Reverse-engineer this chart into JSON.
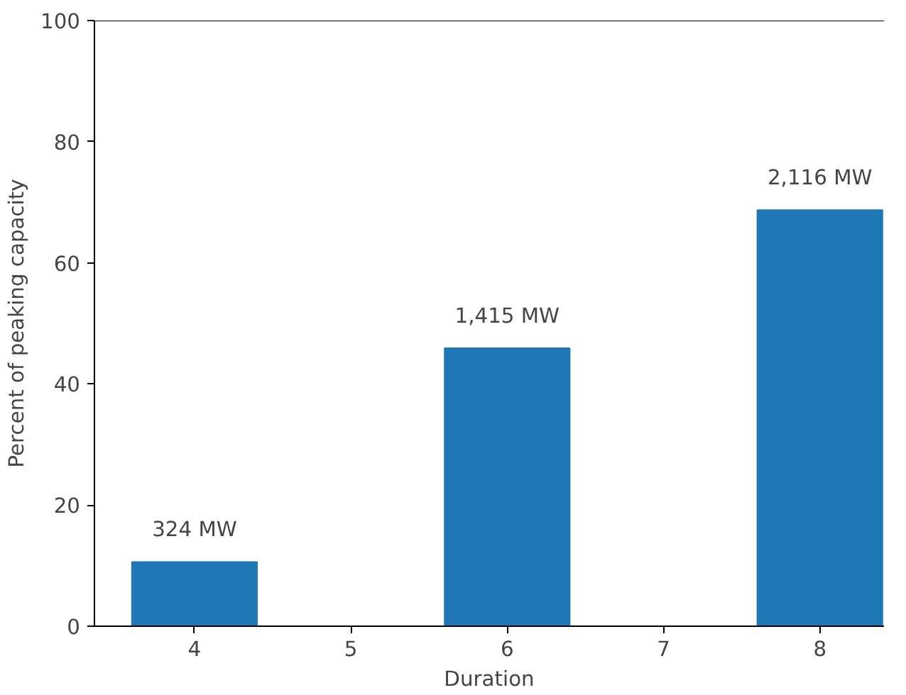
{
  "chart_data": {
    "type": "bar",
    "xlabel": "Duration",
    "ylabel": "Percent of peaking capacity",
    "x": [
      4,
      6,
      8
    ],
    "values": [
      10.6,
      45.9,
      68.7
    ],
    "color": "#1f77b4",
    "annotations": [
      {
        "text": "324 MW",
        "x": 4,
        "y": 10.6
      },
      {
        "text": "1,415 MW",
        "x": 6,
        "y": 45.9
      },
      {
        "text": "2,116 MW",
        "x": 8,
        "y": 68.7
      }
    ],
    "xlim": [
      3.36,
      8.41
    ],
    "xticks": [
      4,
      5,
      6,
      7,
      8
    ],
    "ylim": [
      0,
      100
    ],
    "yticks": [
      0,
      20,
      40,
      60,
      80,
      100
    ],
    "grid": false
  }
}
